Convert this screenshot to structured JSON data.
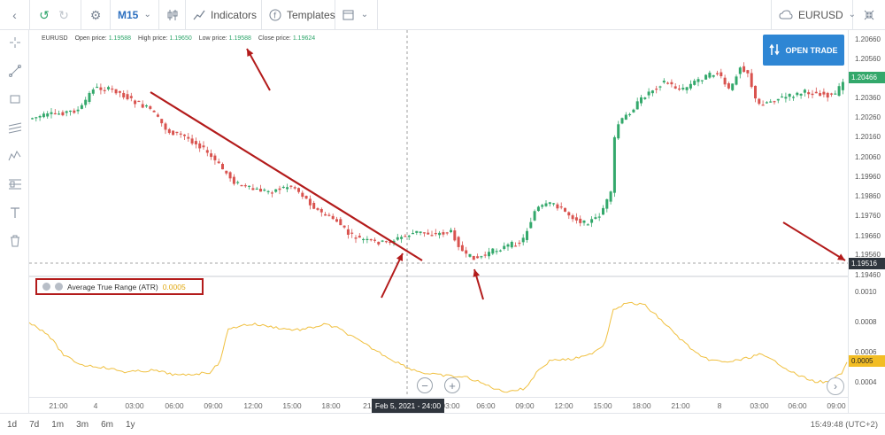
{
  "toolbar": {
    "timeframe": "M15",
    "indicators_label": "Indicators",
    "templates_label": "Templates",
    "symbol": "EURUSD"
  },
  "ohlc": {
    "symbol": "EURUSD",
    "open_label": "Open price:",
    "open": "1.19588",
    "high_label": "High price:",
    "high": "1.19650",
    "low_label": "Low price:",
    "low": "1.19588",
    "close_label": "Close price:",
    "close": "1.19624"
  },
  "open_trade_label": "OPEN TRADE",
  "atr": {
    "label": "Average True Range (ATR)",
    "value": "0.0005"
  },
  "price_axis": {
    "ticks": [
      "1.20660",
      "1.20560",
      "1.20360",
      "1.20260",
      "1.20160",
      "1.20060",
      "1.19960",
      "1.19860",
      "1.19760",
      "1.19660",
      "1.19560",
      "1.19460"
    ],
    "current_price": "1.20466",
    "crosshair_price": "1.19516"
  },
  "atr_axis": {
    "ticks": [
      "0.0010",
      "0.0008",
      "0.0006",
      "0.0004"
    ],
    "current_value": "0.0005"
  },
  "time_axis": {
    "labels": [
      "21:00",
      "4",
      "03:00",
      "06:00",
      "09:00",
      "12:00",
      "15:00",
      "18:00",
      "21:",
      "03:00",
      "06:00",
      "09:00",
      "12:00",
      "15:00",
      "18:00",
      "21:00",
      "8",
      "03:00",
      "06:00",
      "09:00"
    ],
    "crosshair_date": "Feb 5, 2021 - 24:00"
  },
  "periods": [
    "1d",
    "7d",
    "1m",
    "3m",
    "6m",
    "1y"
  ],
  "clock": "15:49:48 (UTC+2)",
  "colors": {
    "bull": "#33a86b",
    "bear": "#d9534f",
    "annotation": "#b31b1b",
    "atr_line": "#f0c040",
    "accent": "#2e86d4"
  }
}
